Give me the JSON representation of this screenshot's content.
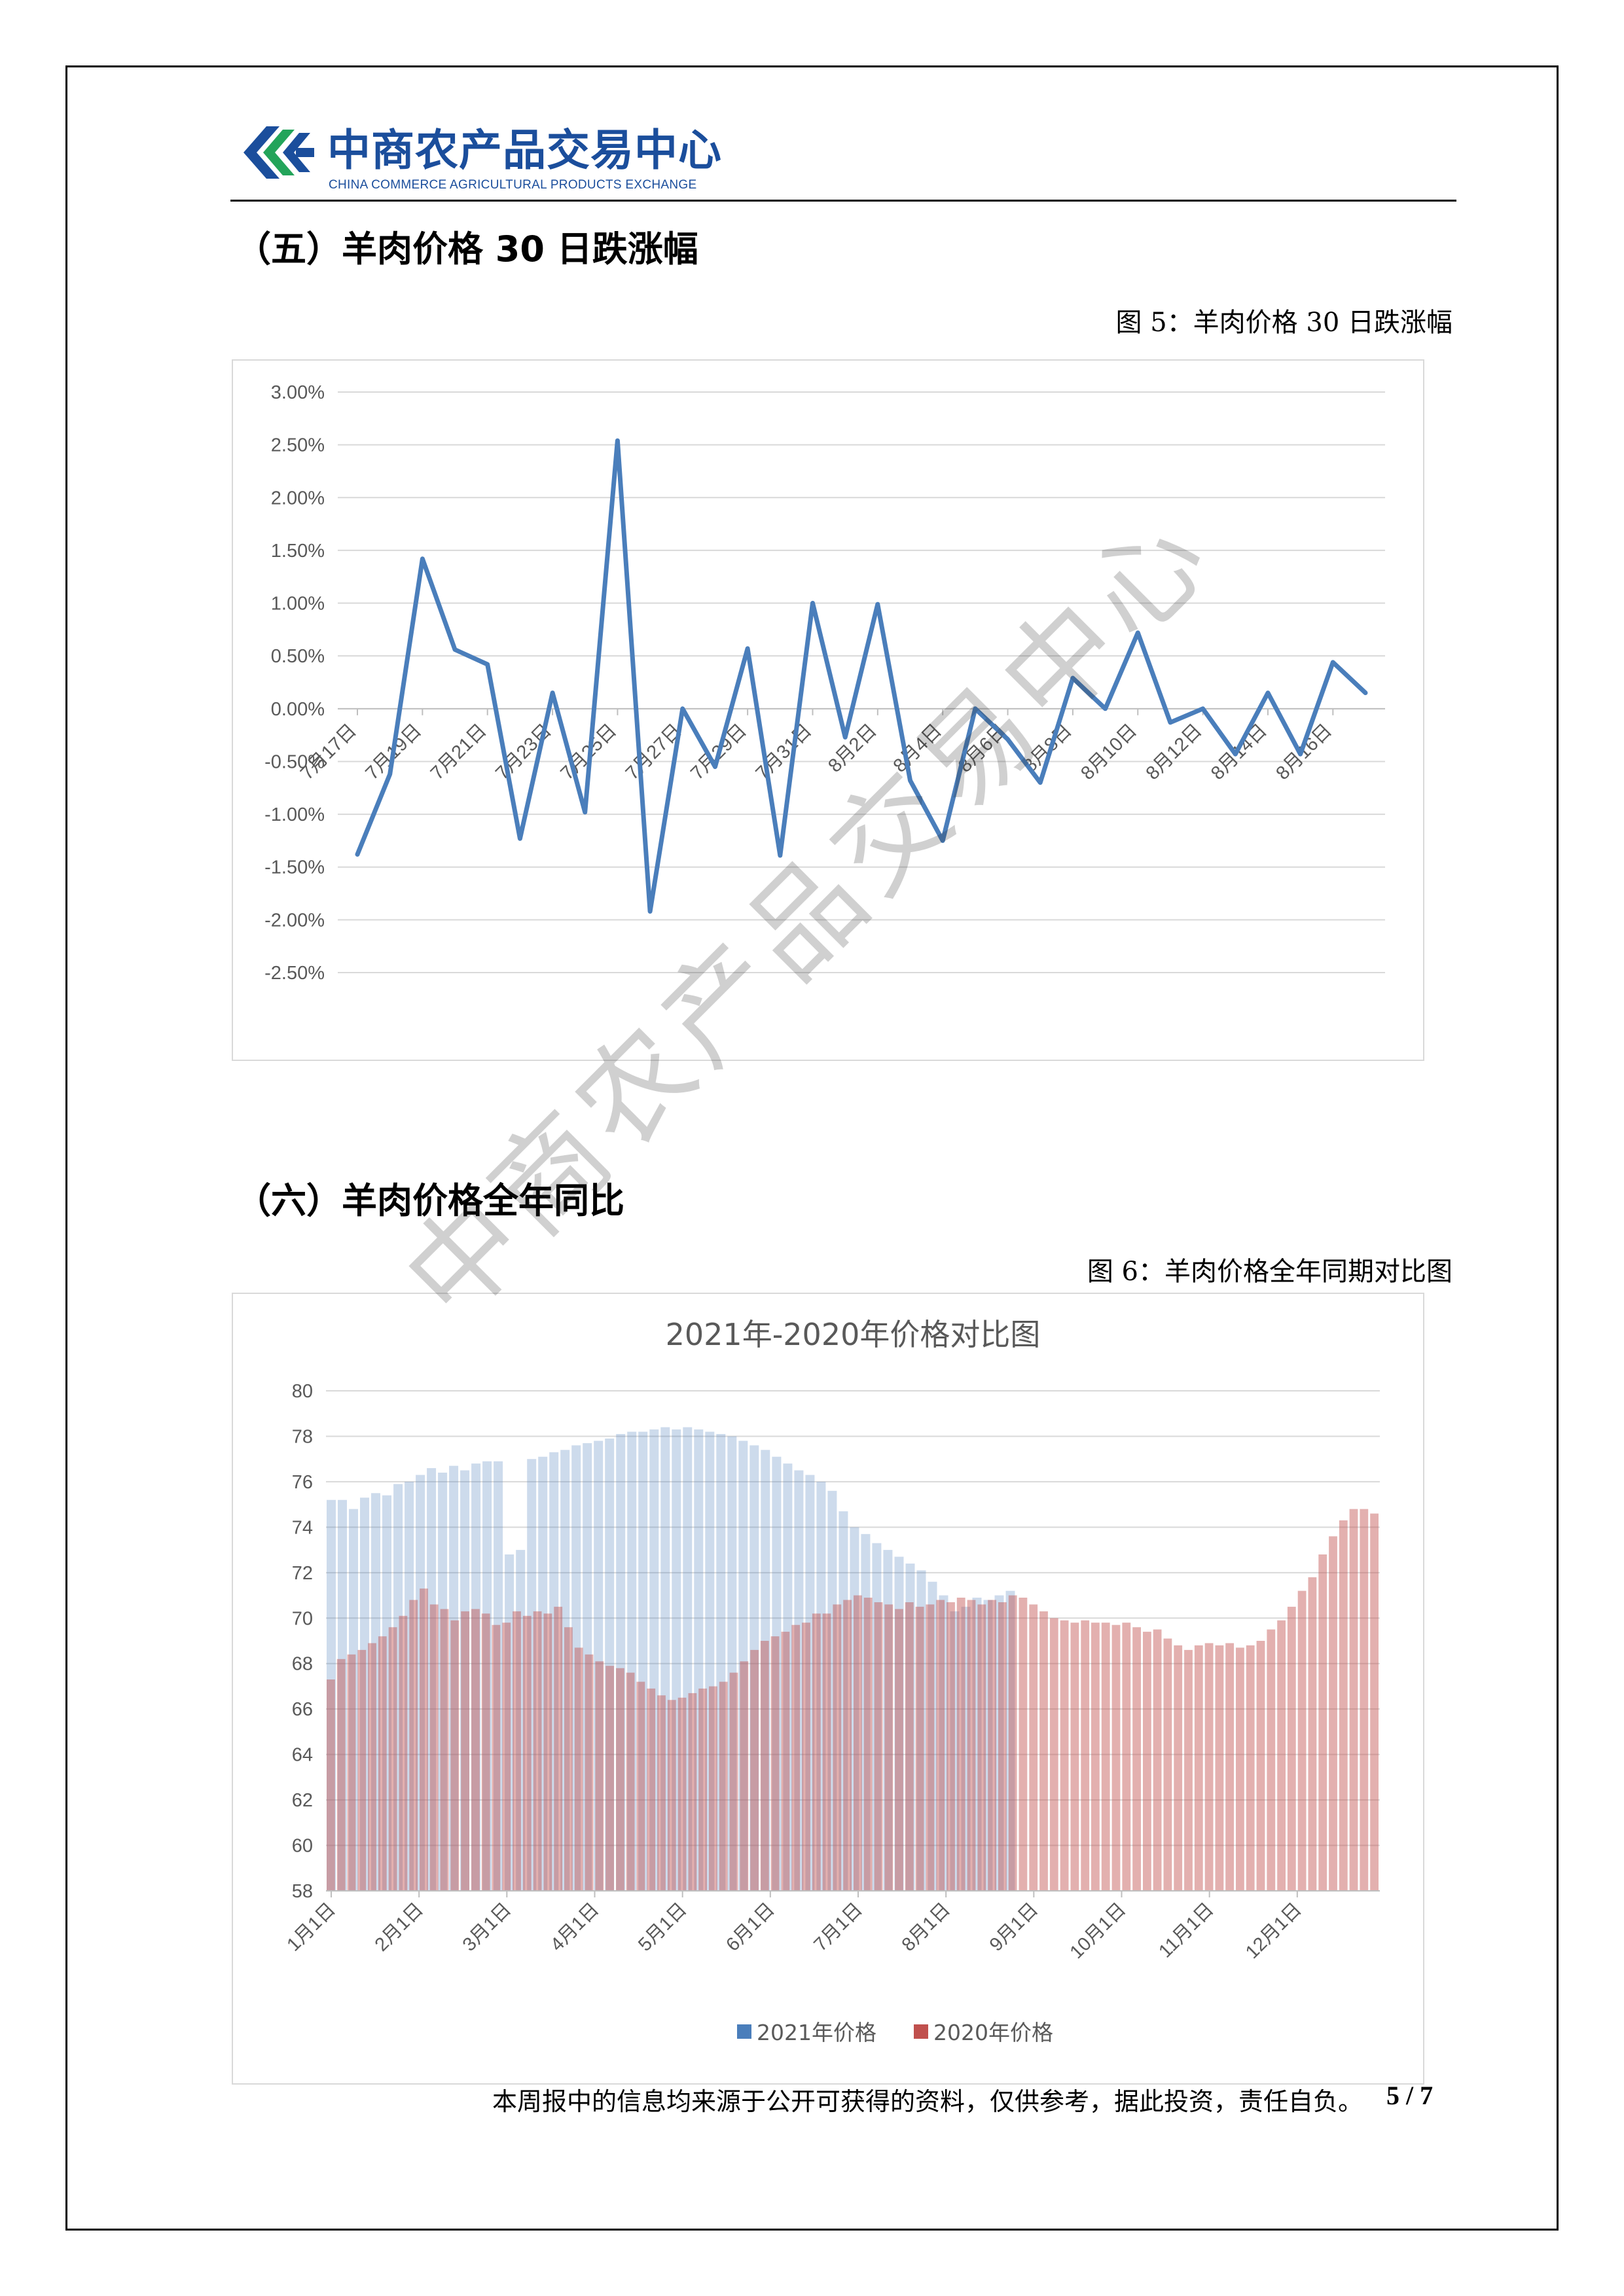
{
  "header": {
    "logo_cn": "中商农产品交易中心",
    "logo_en": "CHINA COMMERCE AGRICULTURAL PRODUCTS EXCHANGE",
    "brand_colors": {
      "blue": "#1b4e9c",
      "green": "#23a45a"
    }
  },
  "section5": {
    "title": "（五）羊肉价格 30 日跌涨幅",
    "caption": "图 5：羊肉价格 30 日跌涨幅"
  },
  "section6": {
    "title": "（六）羊肉价格全年同比",
    "caption": "图 6：羊肉价格全年同期对比图"
  },
  "footer": {
    "disclaimer": "本周报中的信息均来源于公开可获得的资料，仅供参考，据此投资，责任自负。",
    "page": "5 / 7"
  },
  "watermark": "中商农产品交易中心",
  "chart_data": [
    {
      "type": "line",
      "title": "",
      "color": "#4a7ebb",
      "ylim": [
        -2.5,
        3.0
      ],
      "ytick_labels": [
        "3.00%",
        "2.50%",
        "2.00%",
        "1.50%",
        "1.00%",
        "0.50%",
        "0.00%",
        "-0.50%",
        "-1.00%",
        "-1.50%",
        "-2.00%",
        "-2.50%"
      ],
      "x_labels": [
        "7月17日",
        "7月19日",
        "7月21日",
        "7月23日",
        "7月25日",
        "7月27日",
        "7月29日",
        "7月31日",
        "8月2日",
        "8月4日",
        "8月6日",
        "8月8日",
        "8月10日",
        "8月12日",
        "8月14日",
        "8月16日"
      ],
      "values": [
        -1.38,
        -0.62,
        1.42,
        0.56,
        0.42,
        -1.23,
        0.15,
        -0.98,
        2.54,
        -1.92,
        0.0,
        -0.55,
        0.57,
        -1.39,
        1.0,
        -0.27,
        0.99,
        -0.68,
        -1.25,
        0.0,
        -0.29,
        -0.7,
        0.29,
        0.0,
        0.72,
        -0.13,
        0.0,
        -0.43,
        0.15,
        -0.43,
        0.44,
        0.15
      ]
    },
    {
      "type": "bar",
      "title": "2021年-2020年价格对比图",
      "ylim": [
        58,
        80
      ],
      "ytick_labels": [
        "80",
        "78",
        "76",
        "74",
        "72",
        "70",
        "68",
        "66",
        "64",
        "62",
        "60",
        "58"
      ],
      "x_labels": [
        "1月1日",
        "2月1日",
        "3月1日",
        "4月1日",
        "5月1日",
        "6月1日",
        "7月1日",
        "8月1日",
        "9月1日",
        "10月1日",
        "11月1日",
        "12月1日"
      ],
      "legend": [
        "2021年价格",
        "2020年价格"
      ],
      "series": [
        {
          "name": "2021年价格",
          "color": "#4a7ebb",
          "values": [
            75.2,
            75.2,
            74.8,
            75.3,
            75.5,
            75.4,
            75.9,
            76.0,
            76.3,
            76.6,
            76.4,
            76.7,
            76.5,
            76.8,
            76.9,
            76.9,
            72.8,
            73.0,
            77.0,
            77.1,
            77.3,
            77.4,
            77.6,
            77.7,
            77.8,
            77.9,
            78.1,
            78.2,
            78.2,
            78.3,
            78.4,
            78.3,
            78.4,
            78.3,
            78.2,
            78.1,
            78.0,
            77.8,
            77.6,
            77.4,
            77.1,
            76.8,
            76.5,
            76.3,
            76.0,
            75.6,
            74.7,
            74.0,
            73.7,
            73.3,
            73.0,
            72.7,
            72.4,
            72.1,
            71.6,
            71.0,
            70.3,
            70.5,
            70.9,
            70.8,
            71.0,
            71.2
          ]
        },
        {
          "name": "2020年价格",
          "color": "#c0504d",
          "values": [
            67.3,
            68.2,
            68.4,
            68.6,
            68.9,
            69.2,
            69.6,
            70.1,
            70.8,
            71.3,
            70.6,
            70.4,
            69.9,
            70.3,
            70.4,
            70.2,
            69.7,
            69.8,
            70.3,
            70.1,
            70.3,
            70.2,
            70.5,
            69.6,
            68.7,
            68.4,
            68.1,
            67.9,
            67.8,
            67.6,
            67.2,
            66.9,
            66.6,
            66.4,
            66.5,
            66.7,
            66.9,
            67.0,
            67.2,
            67.6,
            68.1,
            68.6,
            69.0,
            69.2,
            69.4,
            69.7,
            69.8,
            70.2,
            70.2,
            70.6,
            70.8,
            71.0,
            70.9,
            70.7,
            70.6,
            70.4,
            70.7,
            70.5,
            70.6,
            70.8,
            70.7,
            70.9,
            70.8,
            70.6,
            70.8,
            70.7,
            71.0,
            70.9,
            70.6,
            70.3,
            70.0,
            69.9,
            69.8,
            69.9,
            69.8,
            69.8,
            69.7,
            69.8,
            69.6,
            69.4,
            69.5,
            69.1,
            68.8,
            68.6,
            68.8,
            68.9,
            68.8,
            68.9,
            68.7,
            68.8,
            69.0,
            69.5,
            69.9,
            70.5,
            71.2,
            71.8,
            72.8,
            73.6,
            74.3,
            74.8,
            74.8,
            74.6
          ]
        }
      ]
    }
  ]
}
